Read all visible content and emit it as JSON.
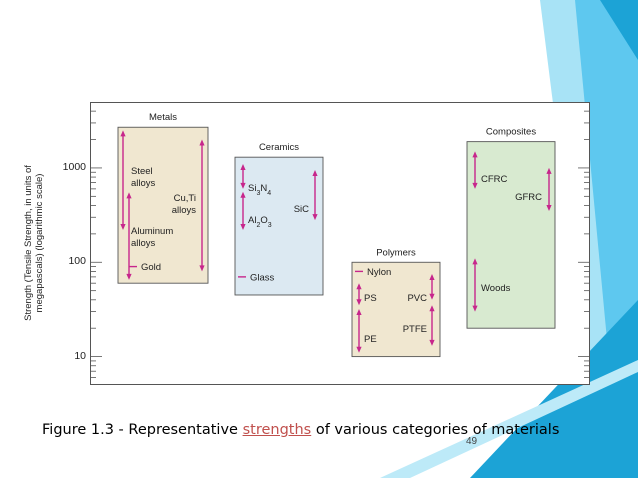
{
  "slide": {
    "caption_prefix": "Figure 1.3 - Representative ",
    "caption_highlight": "strengths",
    "caption_suffix": " of various categories of materials",
    "page_number": "49",
    "accent_colors": [
      "#1ca3d6",
      "#5ec8ef",
      "#9ee0f5"
    ]
  },
  "chart_data": {
    "type": "bar",
    "title": "",
    "ylabel_line1": "Strength (Tensile Strength, in units of",
    "ylabel_line2": "megapascals) (logarithmic scale)",
    "y_scale": "log",
    "ylim": [
      5,
      5000
    ],
    "y_ticks": [
      {
        "value": 10,
        "label": "10"
      },
      {
        "value": 100,
        "label": "100"
      },
      {
        "value": 1000,
        "label": "1000"
      }
    ],
    "grid": false,
    "categories": [
      {
        "name": "Metals",
        "color": "#f0e7d0",
        "range": [
          60,
          2700
        ],
        "materials": [
          {
            "label_lines": [
              "Steel",
              "alloys"
            ],
            "range": [
              220,
              2500
            ],
            "kind": "arrow"
          },
          {
            "label_lines": [
              "Cu,Ti",
              "alloys"
            ],
            "range": [
              80,
              2000
            ],
            "kind": "arrow"
          },
          {
            "label_lines": [
              "Aluminum",
              "alloys"
            ],
            "range": [
              65,
              550
            ],
            "kind": "arrow"
          },
          {
            "label_lines": [
              "Gold"
            ],
            "value": 90,
            "kind": "tick"
          }
        ]
      },
      {
        "name": "Ceramics",
        "color": "#dce9f2",
        "range": [
          45,
          1300
        ],
        "materials": [
          {
            "label_lines": [
              "Si3N4"
            ],
            "range": [
              600,
              1100
            ],
            "kind": "arrow"
          },
          {
            "label_lines": [
              "Al2O3"
            ],
            "range": [
              220,
              560
            ],
            "kind": "arrow"
          },
          {
            "label_lines": [
              "SiC"
            ],
            "range": [
              280,
              950
            ],
            "kind": "arrow"
          },
          {
            "label_lines": [
              "Glass"
            ],
            "value": 70,
            "kind": "tick"
          }
        ]
      },
      {
        "name": "Polymers",
        "color": "#f0e7d0",
        "range": [
          10,
          100
        ],
        "materials": [
          {
            "label_lines": [
              "Nylon"
            ],
            "value": 80,
            "kind": "tick"
          },
          {
            "label_lines": [
              "PS"
            ],
            "range": [
              35,
              60
            ],
            "kind": "arrow"
          },
          {
            "label_lines": [
              "PVC"
            ],
            "range": [
              40,
              75
            ],
            "kind": "arrow"
          },
          {
            "label_lines": [
              "PE"
            ],
            "range": [
              11,
              32
            ],
            "kind": "arrow"
          },
          {
            "label_lines": [
              "PTFE"
            ],
            "range": [
              13,
              35
            ],
            "kind": "arrow"
          }
        ]
      },
      {
        "name": "Composites",
        "color": "#d8ead0",
        "range": [
          20,
          1900
        ],
        "materials": [
          {
            "label_lines": [
              "CFRC"
            ],
            "range": [
              600,
              1500
            ],
            "kind": "arrow"
          },
          {
            "label_lines": [
              "GFRC"
            ],
            "range": [
              350,
              1000
            ],
            "kind": "arrow"
          },
          {
            "label_lines": [
              "Woods"
            ],
            "range": [
              30,
              110
            ],
            "kind": "arrow"
          }
        ]
      }
    ]
  }
}
